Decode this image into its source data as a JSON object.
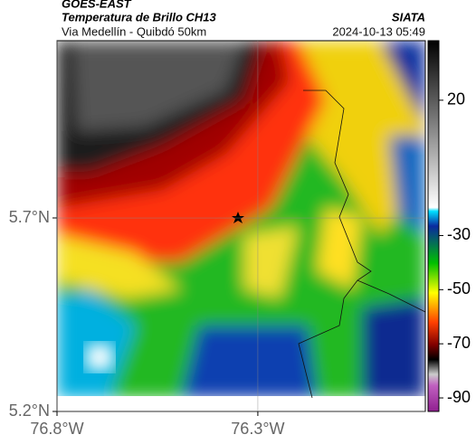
{
  "header": {
    "satellite": "GOES-EAST",
    "product": "Temperatura de Brillo CH13",
    "source": "SIATA",
    "route": "Via Medellín - Quibdó 50km",
    "datetime": "2024-10-13 05:49"
  },
  "map": {
    "latlim": [
      5.2,
      6.158
    ],
    "lonlim": [
      -76.8,
      -75.883
    ],
    "lat_ticks": [
      {
        "value": 5.7,
        "label": "5.7°N"
      },
      {
        "value": 5.2,
        "label": "5.2°N"
      }
    ],
    "lon_ticks": [
      {
        "value": -76.8,
        "label": "76.8°W"
      },
      {
        "value": -76.3,
        "label": "76.3°W"
      }
    ],
    "grid": true,
    "colorbar": {
      "clim": [
        -95,
        42
      ],
      "ticks": [
        20,
        -30,
        -50,
        -70,
        -90
      ]
    }
  }
}
